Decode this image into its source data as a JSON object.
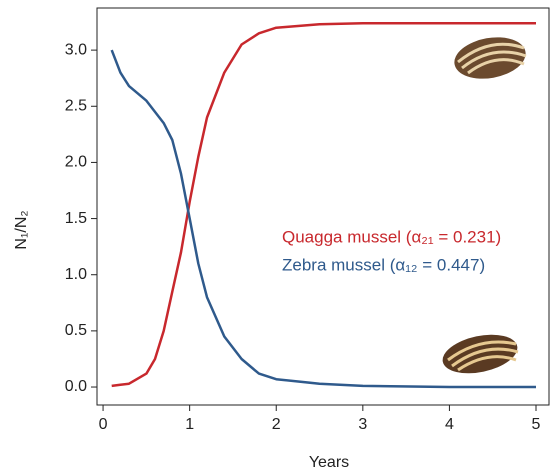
{
  "chart_data": {
    "type": "line",
    "x_label": "Years",
    "y_label": "N₁/N₂",
    "x": [
      0.1,
      0.2,
      0.3,
      0.5,
      0.6,
      0.7,
      0.8,
      0.9,
      1.0,
      1.1,
      1.2,
      1.4,
      1.6,
      1.8,
      2.0,
      2.5,
      3,
      4,
      5
    ],
    "series": [
      {
        "name": "Quagga mussel (α₂₁ = 0.231)",
        "color": "#c8282d",
        "values": [
          0.01,
          0.02,
          0.03,
          0.12,
          0.25,
          0.5,
          0.85,
          1.2,
          1.65,
          2.05,
          2.4,
          2.8,
          3.05,
          3.15,
          3.2,
          3.23,
          3.24,
          3.24,
          3.24
        ]
      },
      {
        "name": "Zebra mussel (α₁₂ = 0.447)",
        "color": "#2f5a8c",
        "values": [
          3.0,
          2.8,
          2.68,
          2.55,
          2.45,
          2.35,
          2.2,
          1.9,
          1.5,
          1.1,
          0.8,
          0.45,
          0.25,
          0.12,
          0.07,
          0.03,
          0.01,
          0,
          0
        ]
      }
    ],
    "xlim": [
      -0.07,
      5.15
    ],
    "ylim": [
      -0.16,
      3.375
    ],
    "xticks": [
      0,
      1,
      2,
      3,
      4,
      5
    ],
    "yticks": [
      {
        "value": 0,
        "label": "0.0"
      },
      0.5,
      {
        "value": 1,
        "label": "1.0"
      },
      1.5,
      {
        "value": 2,
        "label": "2.0"
      },
      2.5,
      {
        "value": 3,
        "label": "3.0"
      }
    ],
    "grid": false
  }
}
